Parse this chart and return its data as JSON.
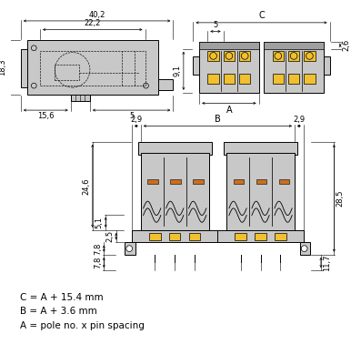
{
  "bg_color": "#ffffff",
  "line_color": "#000000",
  "gray_fill": "#c8c8c8",
  "gray_dark": "#a0a0a0",
  "yellow_fill": "#f0c030",
  "orange_fill": "#c87020",
  "dim_fontsize": 6.0,
  "label_fontsize": 7.0,
  "formula_fontsize": 7.5,
  "formulas": [
    "C = A + 15.4 mm",
    "B = A + 3.6 mm",
    "A = pole no. x pin spacing"
  ]
}
